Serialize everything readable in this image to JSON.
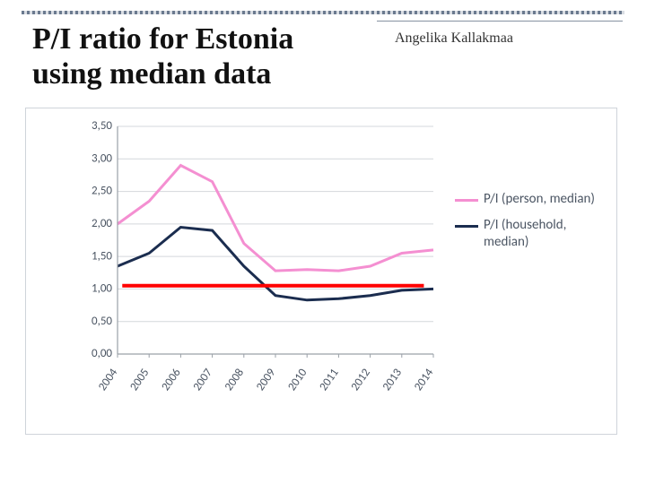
{
  "title": "P/I ratio for Estonia using median data",
  "author": "Angelika Kallakmaa",
  "chart": {
    "type": "line",
    "background_color": "#ffffff",
    "grid_color": "#d4d7dc",
    "axis_color": "#9aa0a8",
    "text_color": "#4b5563",
    "title_fontsize": 34,
    "author_fontsize": 16,
    "tick_fontsize": 13,
    "legend_fontsize": 15,
    "x_labels": [
      "2004",
      "2005",
      "2006",
      "2007",
      "2008",
      "2009",
      "2010",
      "2011",
      "2012",
      "2013",
      "2014"
    ],
    "ylim": [
      0.0,
      3.5
    ],
    "ytick_step": 0.5,
    "ytick_labels": [
      "0,00",
      "0,50",
      "1,00",
      "1,50",
      "2,00",
      "2,50",
      "3,00",
      "3,50"
    ],
    "series": [
      {
        "name": "P/I (person, median)",
        "color": "#f48fd1",
        "line_width": 3,
        "values": [
          2.0,
          2.35,
          2.9,
          2.65,
          1.7,
          1.28,
          1.3,
          1.28,
          1.35,
          1.55,
          1.6
        ]
      },
      {
        "name": "P/I (household, median)",
        "color": "#1b2d4f",
        "line_width": 3,
        "values": [
          1.35,
          1.55,
          1.95,
          1.9,
          1.35,
          0.9,
          0.83,
          0.85,
          0.9,
          0.98,
          1.0
        ]
      }
    ],
    "reference_line": {
      "y": 1.05,
      "x_start_idx": 0.15,
      "x_end_idx": 9.7,
      "color": "#ff0000",
      "line_width": 4
    },
    "x_label_rotation_deg": -55
  }
}
